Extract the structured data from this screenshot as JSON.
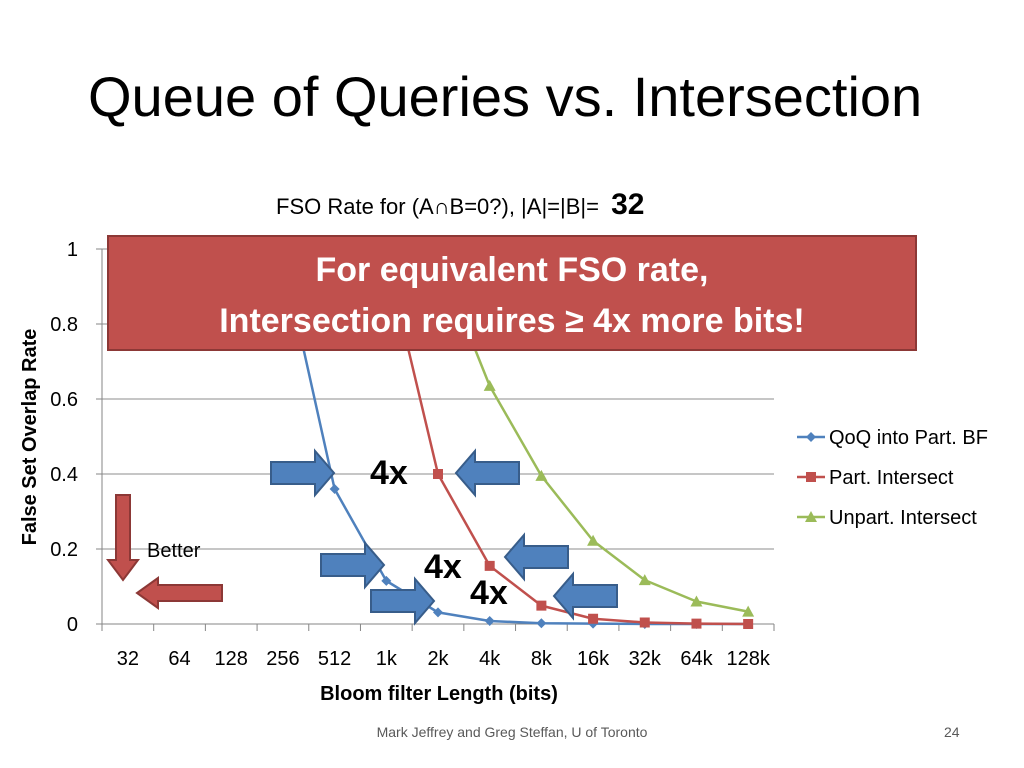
{
  "slide": {
    "title": "Queue of Queries vs. Intersection",
    "footer": "Mark Jeffrey and Greg Steffan, U of Toronto",
    "page_number": "24"
  },
  "chart_data": {
    "type": "line",
    "title": "FSO Rate for (A∩B=0?), |A|=|B|=",
    "title_emph": "32",
    "xlabel": "Bloom filter Length (bits)",
    "ylabel": "False Set Overlap Rate",
    "ylim": [
      0,
      1
    ],
    "yticks": [
      "0",
      "0.2",
      "0.4",
      "0.6",
      "0.8",
      "1"
    ],
    "categories": [
      "32",
      "64",
      "128",
      "256",
      "512",
      "1k",
      "2k",
      "4k",
      "8k",
      "16k",
      "32k",
      "64k",
      "128k"
    ],
    "grid": true,
    "legend_position": "right",
    "series": [
      {
        "name": "QoQ into Part. BF",
        "color": "#4F81BD",
        "marker": "diamond",
        "values": [
          null,
          null,
          null,
          0.98,
          0.36,
          0.115,
          0.031,
          0.008,
          0.002,
          0.001,
          0.0,
          0.0,
          0.0
        ]
      },
      {
        "name": "Part. Intersect",
        "color": "#C0504D",
        "marker": "square",
        "values": [
          null,
          null,
          null,
          null,
          null,
          0.98,
          0.4,
          0.155,
          0.049,
          0.014,
          0.004,
          0.001,
          0.0
        ]
      },
      {
        "name": "Unpart. Intersect",
        "color": "#9BBB59",
        "marker": "triangle",
        "values": [
          null,
          null,
          null,
          null,
          null,
          null,
          0.98,
          0.635,
          0.395,
          0.222,
          0.117,
          0.06,
          0.033
        ]
      }
    ],
    "annotations": {
      "callout_line1": "For equivalent FSO rate,",
      "callout_line2": "Intersection requires ≥ 4x more bits!",
      "better_label": "Better",
      "factor_labels": [
        "4x",
        "4x",
        "4x"
      ]
    }
  }
}
